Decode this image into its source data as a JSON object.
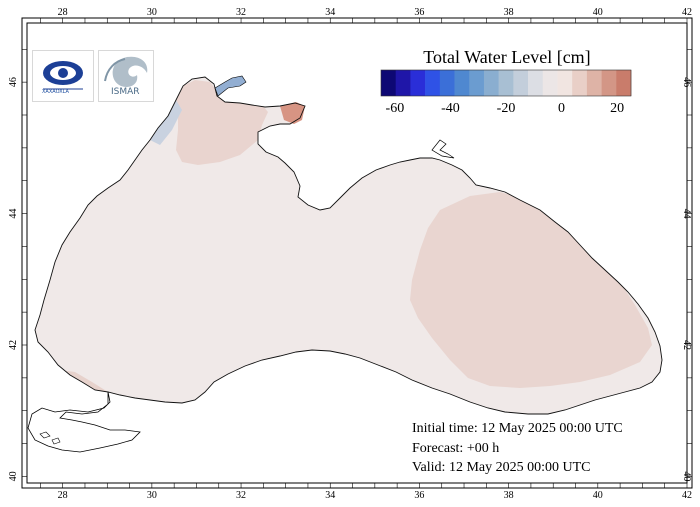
{
  "map": {
    "region": "Black Sea",
    "lon_ticks": [
      "28",
      "30",
      "32",
      "34",
      "36",
      "38",
      "40",
      "42"
    ],
    "lat_ticks": [
      "40",
      "42",
      "44",
      "46"
    ],
    "lon_range": [
      27.2,
      42.0
    ],
    "lat_range": [
      39.9,
      46.9
    ],
    "background": "#f1e9e7"
  },
  "colorbar": {
    "title": "Total Water Level [cm]",
    "tick_labels": [
      "-60",
      "-40",
      "-20",
      "0",
      "20"
    ],
    "range": [
      -65,
      25
    ],
    "colors": [
      "#0d0874",
      "#1f16a8",
      "#2a2ed8",
      "#2f52e6",
      "#3b6fd8",
      "#4f88d0",
      "#6b9cd0",
      "#8aaed0",
      "#a8bfd3",
      "#c3cedb",
      "#dcdee4",
      "#ece6e6",
      "#f1e5e1",
      "#e9cfc7",
      "#deb3a6",
      "#d39686",
      "#c97c6b"
    ]
  },
  "logos": {
    "left": "XAXAOXLA",
    "right": "ISMAR"
  },
  "forecast": {
    "initial_time": "Initial time: 12 May 2025 00:00 UTC",
    "forecast": "Forecast: +00 h",
    "valid": "Valid: 12 May 2025 00:00 UTC"
  }
}
